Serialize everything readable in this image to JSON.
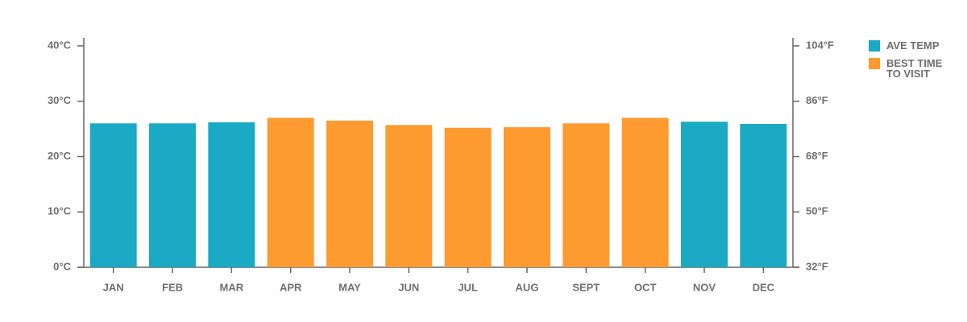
{
  "chart_data": {
    "type": "bar",
    "categories": [
      "JAN",
      "FEB",
      "MAR",
      "APR",
      "MAY",
      "JUN",
      "JUL",
      "AUG",
      "SEPT",
      "OCT",
      "NOV",
      "DEC"
    ],
    "series": [
      {
        "name": "AVE TEMP",
        "color": "#1aaac4",
        "values": [
          26,
          26,
          26.2,
          null,
          null,
          null,
          null,
          null,
          null,
          null,
          26.3,
          25.9
        ]
      },
      {
        "name": "BEST TIME TO VISIT",
        "color": "#fd9a30",
        "values": [
          null,
          null,
          null,
          27,
          26.5,
          25.7,
          25.2,
          25.3,
          26,
          27,
          null,
          null
        ]
      }
    ],
    "ylim": [
      0,
      40
    ],
    "yticks": [
      {
        "value": 0,
        "label": "0°C"
      },
      {
        "value": 10,
        "label": "10°C"
      },
      {
        "value": 20,
        "label": "20°C"
      },
      {
        "value": 30,
        "label": "30°C"
      },
      {
        "value": 40,
        "label": "40°C"
      }
    ],
    "y2lim": [
      32,
      104
    ],
    "y2ticks": [
      {
        "value": 32,
        "label": "32°F"
      },
      {
        "value": 50,
        "label": "50°F"
      },
      {
        "value": 68,
        "label": "68°F"
      },
      {
        "value": 86,
        "label": "86°F"
      },
      {
        "value": 104,
        "label": "104°F"
      }
    ],
    "grid": false,
    "legend": "right"
  }
}
